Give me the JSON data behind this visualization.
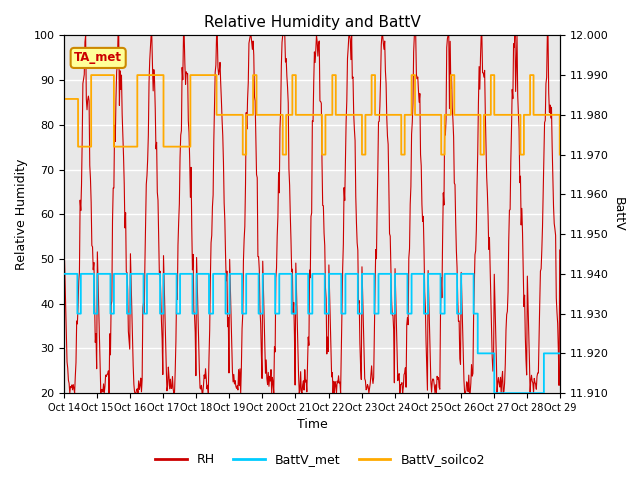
{
  "title": "Relative Humidity and BattV",
  "xlabel": "Time",
  "ylabel_left": "Relative Humidity",
  "ylabel_right": "BattV",
  "ylim_left": [
    20,
    100
  ],
  "ylim_right": [
    11.91,
    12.0
  ],
  "yticks_left": [
    20,
    30,
    40,
    50,
    60,
    70,
    80,
    90,
    100
  ],
  "yticks_right": [
    11.91,
    11.92,
    11.93,
    11.94,
    11.95,
    11.96,
    11.97,
    11.98,
    11.99,
    12.0
  ],
  "xtick_labels": [
    "Oct 14",
    "Oct 15",
    "Oct 16",
    "Oct 17",
    "Oct 18",
    "Oct 19",
    "Oct 20",
    "Oct 21",
    "Oct 22",
    "Oct 23",
    "Oct 24",
    "Oct 25",
    "Oct 26",
    "Oct 27",
    "Oct 28",
    "Oct 29"
  ],
  "color_RH": "#cc0000",
  "color_BattV_met": "#00ccff",
  "color_BattV_soilco2": "#ffaa00",
  "color_background": "#e8e8e8",
  "annotation_text": "TA_met",
  "annotation_color_bg": "#ffff99",
  "annotation_color_border": "#cc8800",
  "annotation_color_text": "#cc0000",
  "n_days": 15,
  "n_pts_per_day": 48
}
